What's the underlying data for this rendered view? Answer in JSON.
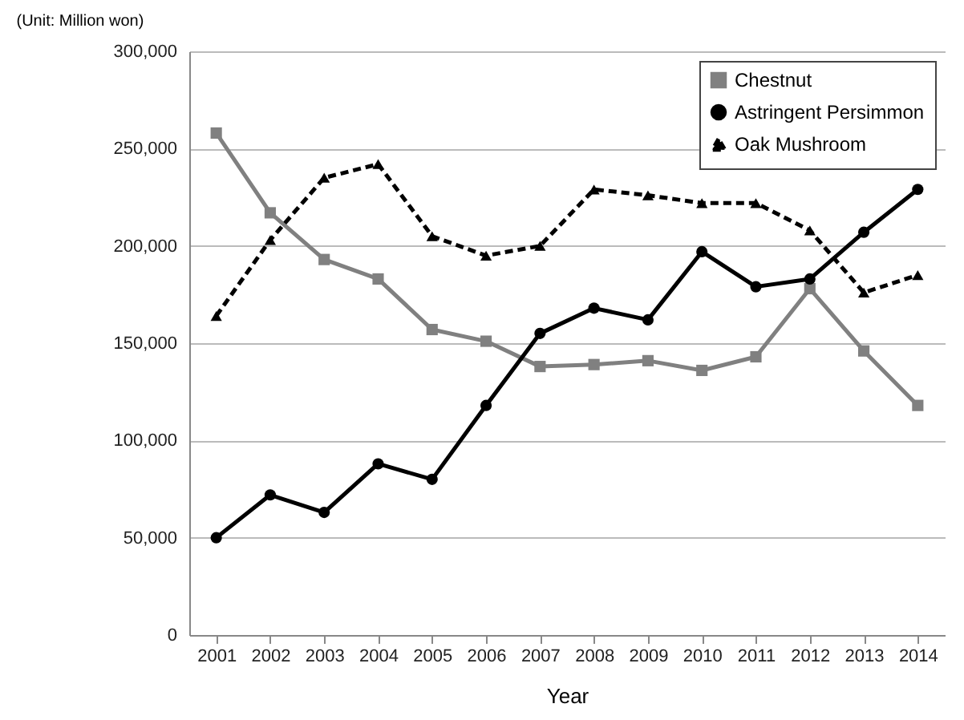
{
  "chart_data": {
    "type": "line",
    "xlabel": "Year",
    "annotations": [
      "(Unit: Million won)"
    ],
    "categories": [
      "2001",
      "2002",
      "2003",
      "2004",
      "2005",
      "2006",
      "2007",
      "2008",
      "2009",
      "2010",
      "2011",
      "2012",
      "2013",
      "2014"
    ],
    "series": [
      {
        "name": "Chestnut",
        "color": "#808080",
        "marker": "square",
        "line_style": "solid",
        "values": [
          258000,
          217000,
          193000,
          183000,
          157000,
          151000,
          138000,
          139000,
          141000,
          136000,
          143000,
          178000,
          146000,
          118000
        ]
      },
      {
        "name": "Astringent Persimmon",
        "color": "#000000",
        "marker": "circle",
        "line_style": "solid",
        "values": [
          50000,
          72000,
          63000,
          88000,
          80000,
          118000,
          155000,
          168000,
          162000,
          197000,
          179000,
          183000,
          207000,
          229000
        ]
      },
      {
        "name": "Oak Mushroom",
        "color": "#000000",
        "marker": "triangle",
        "line_style": "dashed",
        "values": [
          164000,
          203000,
          235000,
          242000,
          205000,
          195000,
          200000,
          229000,
          226000,
          222000,
          222000,
          208000,
          176000,
          185000
        ]
      }
    ],
    "ylim": [
      0,
      300000
    ],
    "yticks": [
      0,
      {
        "value": 50000,
        "label": "50,000"
      },
      {
        "value": 100000,
        "label": "100,000"
      },
      {
        "value": 150000,
        "label": "150,000"
      },
      {
        "value": 200000,
        "label": "200,000"
      },
      {
        "value": 250000,
        "label": "250,000"
      },
      {
        "value": 300000,
        "label": "300,000"
      }
    ],
    "grid": "y",
    "legend": "top right"
  }
}
